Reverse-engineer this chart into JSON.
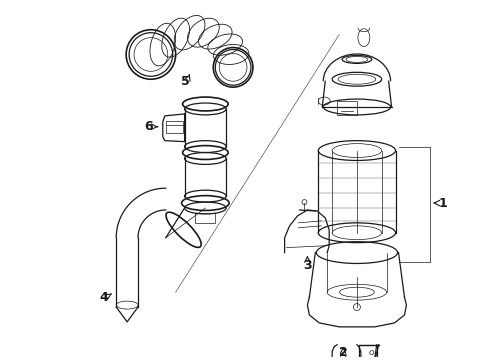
{
  "bg_color": "#ffffff",
  "line_color": "#1a1a1a",
  "label_color": "#000000",
  "figsize": [
    4.9,
    3.6
  ],
  "dpi": 100,
  "lw_main": 0.9,
  "lw_thin": 0.5,
  "lw_thick": 1.2
}
